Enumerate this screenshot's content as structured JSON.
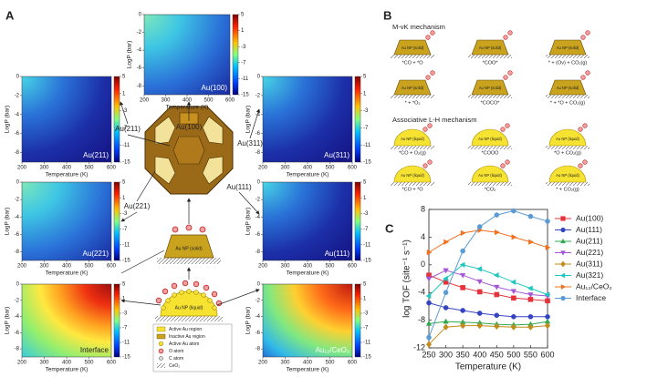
{
  "panel_labels": [
    "A",
    "B",
    "C"
  ],
  "heatmaps": {
    "x_label": "Temperature (K)",
    "y_label": "LogP (bar)",
    "xlim": [
      200,
      600
    ],
    "xticks": [
      200,
      300,
      400,
      500,
      600
    ],
    "ylim": [
      -9,
      0
    ],
    "yticks": [
      0,
      -2,
      -4,
      -6,
      -8
    ],
    "colorbar_lim": [
      -15,
      5
    ],
    "colorbar_ticks": [
      5,
      1,
      -3,
      -7,
      -11,
      -15
    ],
    "panels": [
      "Au(100)",
      "Au(211)",
      "Au(311)",
      "Au(221)",
      "Au(111)",
      "Interface",
      "Au₁₂/CeO₂"
    ]
  },
  "diagram": {
    "facets": [
      "Au(100)",
      "Au(211)",
      "Au(311)",
      "Au(111)",
      "Au(221)"
    ],
    "solid": "Au NP (solid)",
    "liquid": "Au NP (liquid)",
    "legend": [
      "Active Au region",
      "Inactive Au region",
      "Active Au atom",
      "O atom",
      "C atom",
      "CeO₂"
    ]
  },
  "mechanisms": [
    {
      "title": "M-vK mechanism",
      "np_label": "Au NP (solid)",
      "steps": [
        "*CO + *O",
        "*COO*",
        "* + (Ov) + CO₂(g)",
        "* + *O₂",
        "*COCO*",
        "* + *O + CO₂(g)"
      ]
    },
    {
      "title": "Associative L-H mechanism",
      "np_label": "Au NP (liquid)",
      "steps": [
        "*CO + O₂(g)",
        "*COOO",
        "*O + CO₂(g)",
        "*CO + *O",
        "*CO₂",
        "* + CO₂(g)"
      ]
    }
  ],
  "chart_data": {
    "type": "line",
    "x_label": "Temperature (K)",
    "y_label": "log TOF (site⁻¹ s⁻¹)",
    "x": [
      250,
      300,
      350,
      400,
      450,
      500,
      550,
      600
    ],
    "xlim": [
      250,
      600
    ],
    "xticks": [
      250,
      300,
      350,
      400,
      450,
      500,
      550,
      600
    ],
    "ylim": [
      -12,
      8
    ],
    "yticks": [
      -12,
      -8,
      -4,
      0,
      4,
      8
    ],
    "series": [
      {
        "name": "Au(100)",
        "color": "#e5323b",
        "marker": "square",
        "values": [
          -1.5,
          -2.5,
          -3.3,
          -3.9,
          -4.3,
          -4.8,
          -5.0,
          -5.2
        ]
      },
      {
        "name": "Au(111)",
        "color": "#3444c4",
        "marker": "circle",
        "values": [
          -5.5,
          -6.2,
          -6.6,
          -7.0,
          -7.3,
          -7.5,
          -7.5,
          -7.5
        ]
      },
      {
        "name": "Au(211)",
        "color": "#2fa84f",
        "marker": "triangle-up",
        "values": [
          -8.5,
          -8.2,
          -8.3,
          -8.4,
          -8.6,
          -8.7,
          -8.6,
          -8.2
        ]
      },
      {
        "name": "Au(221)",
        "color": "#a457d6",
        "marker": "triangle-down",
        "values": [
          -2.0,
          -0.8,
          -1.5,
          -2.4,
          -3.2,
          -3.8,
          -4.3,
          -4.5
        ]
      },
      {
        "name": "Au(311)",
        "color": "#c28b1a",
        "marker": "diamond",
        "values": [
          -11.5,
          -9.0,
          -8.8,
          -8.8,
          -8.9,
          -9.0,
          -9.0,
          -8.8
        ]
      },
      {
        "name": "Au(321)",
        "color": "#1fc7c0",
        "marker": "triangle-left",
        "values": [
          -4.5,
          -2.0,
          0,
          -0.6,
          -1.5,
          -2.5,
          -3.4,
          -4.3
        ]
      },
      {
        "name": "Au₁₂/CeO₂",
        "color": "#f07020",
        "marker": "triangle-right",
        "values": [
          1.8,
          3.3,
          4.6,
          5.0,
          4.7,
          4.0,
          3.3,
          2.5
        ]
      },
      {
        "name": "Interface",
        "color": "#5b9bd5",
        "marker": "circle",
        "values": [
          -10.5,
          -4.0,
          2.0,
          5.5,
          7.2,
          7.8,
          7.0,
          6.3
        ]
      }
    ]
  }
}
